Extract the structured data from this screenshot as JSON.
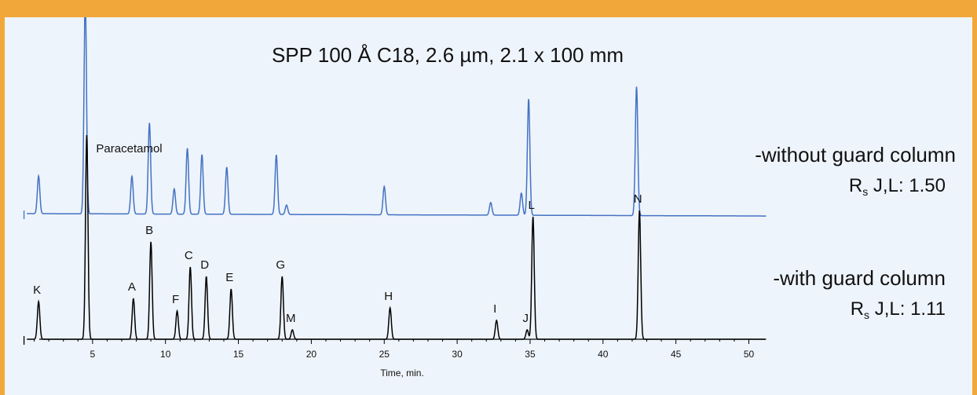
{
  "chart_data": {
    "type": "line",
    "title": "SPP 100 Å C18, 2.6 µm, 2.1 x 100 mm",
    "xlabel": "Time, min.",
    "xlim": [
      0,
      50
    ],
    "xticks": [
      "5",
      "10",
      "15",
      "20",
      "25",
      "30",
      "35",
      "40",
      "45",
      "50"
    ],
    "grid": false,
    "series": [
      {
        "name": "-without guard column",
        "rs_label": "R",
        "rs_sub": "s",
        "rs_text": " J,L: 1.50",
        "color": "#4472c4",
        "peaks": [
          {
            "t": 1.3,
            "h": 0.12
          },
          {
            "t": 4.5,
            "h": 0.69
          },
          {
            "t": 7.7,
            "h": 0.12
          },
          {
            "t": 8.9,
            "h": 0.29
          },
          {
            "t": 10.6,
            "h": 0.08
          },
          {
            "t": 11.5,
            "h": 0.21
          },
          {
            "t": 12.5,
            "h": 0.19
          },
          {
            "t": 14.2,
            "h": 0.15
          },
          {
            "t": 17.6,
            "h": 0.19
          },
          {
            "t": 18.3,
            "h": 0.03
          },
          {
            "t": 25.0,
            "h": 0.09
          },
          {
            "t": 32.3,
            "h": 0.04
          },
          {
            "t": 34.4,
            "h": 0.07
          },
          {
            "t": 34.9,
            "h": 0.37
          },
          {
            "t": 42.3,
            "h": 0.41
          }
        ]
      },
      {
        "name": "-with guard column",
        "rs_label": "R",
        "rs_sub": "s",
        "rs_text": " J,L: 1.11",
        "color": "#000000",
        "peaks": [
          {
            "t": 1.3,
            "h": 0.12,
            "label": "K"
          },
          {
            "t": 4.6,
            "h": 0.65,
            "label": "Paracetamol"
          },
          {
            "t": 7.8,
            "h": 0.13,
            "label": "A"
          },
          {
            "t": 9.0,
            "h": 0.31,
            "label": "B"
          },
          {
            "t": 10.8,
            "h": 0.09,
            "label": "F"
          },
          {
            "t": 11.7,
            "h": 0.23,
            "label": "C"
          },
          {
            "t": 12.8,
            "h": 0.2,
            "label": "D"
          },
          {
            "t": 14.5,
            "h": 0.16,
            "label": "E"
          },
          {
            "t": 18.0,
            "h": 0.2,
            "label": "G"
          },
          {
            "t": 18.7,
            "h": 0.03,
            "label": "M"
          },
          {
            "t": 25.4,
            "h": 0.1,
            "label": "H"
          },
          {
            "t": 32.7,
            "h": 0.06,
            "label": "I"
          },
          {
            "t": 34.8,
            "h": 0.03,
            "label": "J"
          },
          {
            "t": 35.2,
            "h": 0.39,
            "label": "L"
          },
          {
            "t": 42.5,
            "h": 0.41,
            "label": "N"
          }
        ]
      }
    ]
  }
}
